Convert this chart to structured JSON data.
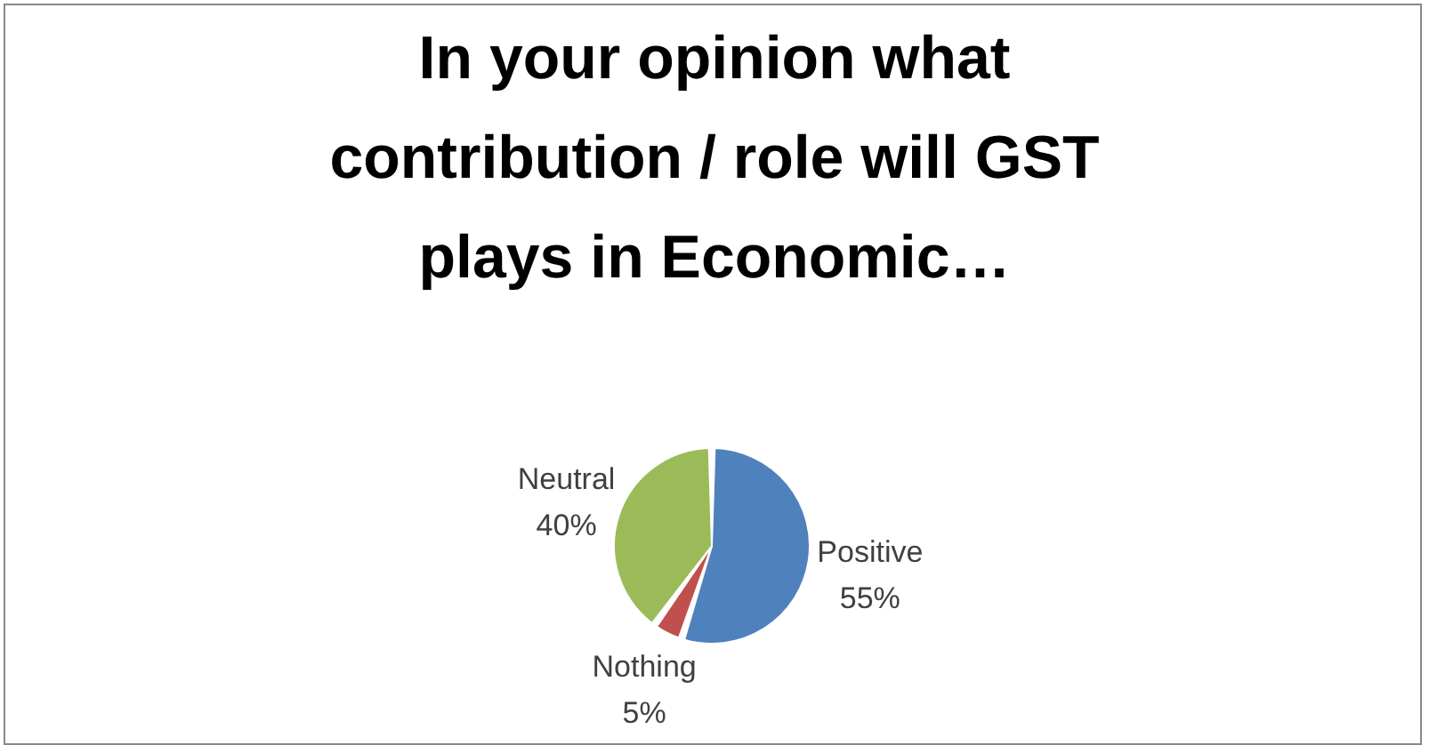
{
  "chart_data": {
    "type": "pie",
    "title": "In your opinion what contribution / role will GST plays in Economic…",
    "categories": [
      "Positive",
      "Nothing",
      "Neutral"
    ],
    "values": [
      55,
      5,
      40
    ],
    "colors": [
      "#4f81bd",
      "#c0504d",
      "#9bbb59"
    ],
    "value_labels": [
      "55%",
      "5%",
      "40%"
    ],
    "legend": false
  }
}
